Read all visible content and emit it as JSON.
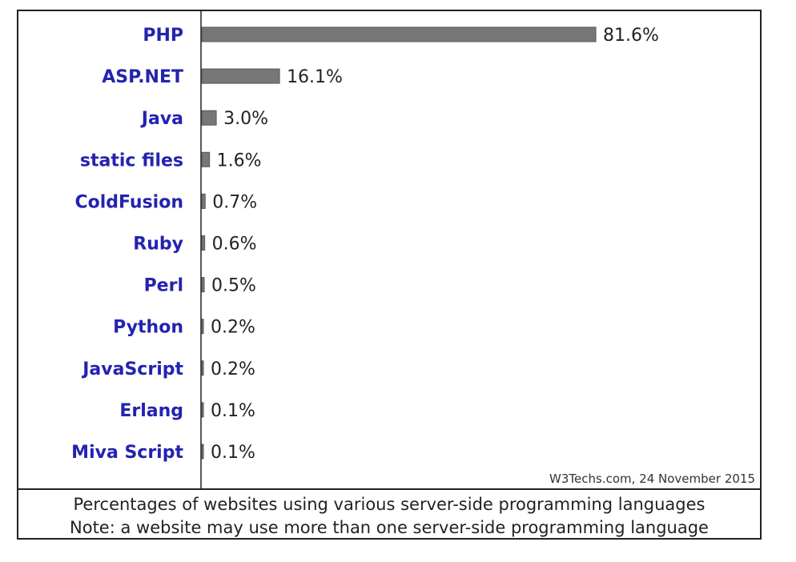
{
  "chart_data": {
    "type": "bar",
    "orientation": "horizontal",
    "categories": [
      "PHP",
      "ASP.NET",
      "Java",
      "static files",
      "ColdFusion",
      "Ruby",
      "Perl",
      "Python",
      "JavaScript",
      "Erlang",
      "Miva Script"
    ],
    "values": [
      81.6,
      16.1,
      3.0,
      1.6,
      0.7,
      0.6,
      0.5,
      0.2,
      0.2,
      0.1,
      0.1
    ],
    "value_labels": [
      "81.6%",
      "16.1%",
      "3.0%",
      "1.6%",
      "0.7%",
      "0.6%",
      "0.5%",
      "0.2%",
      "0.2%",
      "0.1%",
      "0.1%"
    ],
    "xlim": [
      0,
      100
    ],
    "grid": false,
    "legend": "none",
    "colors": {
      "bar": "#777777",
      "category_label": "#2323b0",
      "border": "#222222"
    }
  },
  "source": "W3Techs.com, 24 November 2015",
  "caption": {
    "line1": "Percentages of websites using various server-side programming languages",
    "line2": "Note: a website may use more than one server-side programming language"
  }
}
